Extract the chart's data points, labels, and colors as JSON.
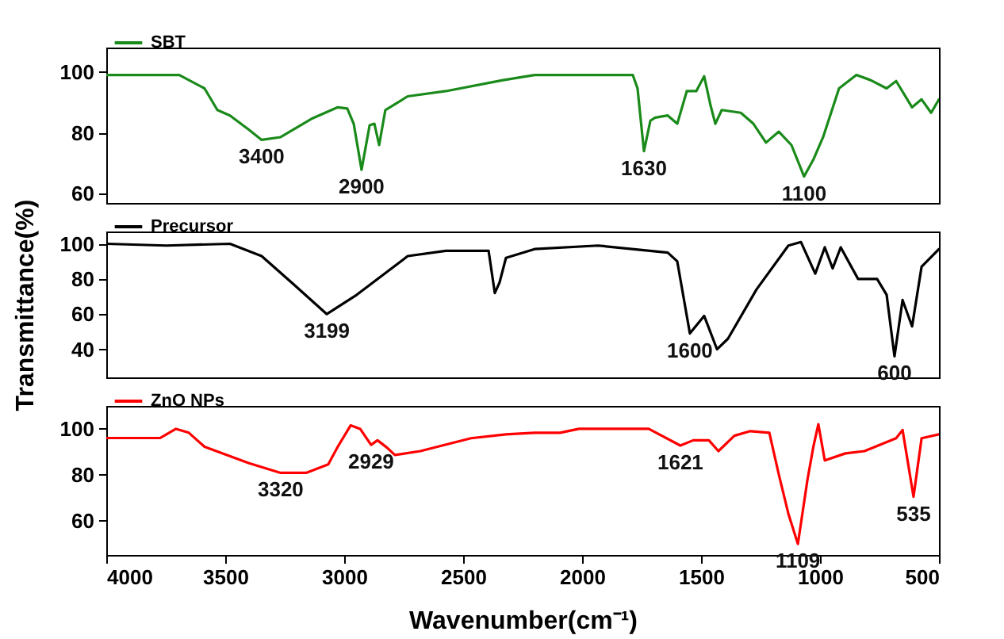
{
  "chart_data": [
    {
      "type": "line",
      "legend": "top left",
      "grid": false,
      "tick_labels": "y",
      "xlim": [
        4000,
        500
      ],
      "ylim": [
        57,
        108
      ],
      "yticks": [
        60,
        80,
        100
      ],
      "x": [
        4000,
        3693,
        3587,
        3533,
        3480,
        3400,
        3347,
        3267,
        3133,
        3027,
        2987,
        2960,
        2927,
        2893,
        2873,
        2853,
        2827,
        2733,
        2573,
        2333,
        2200,
        1933,
        1787,
        1767,
        1740,
        1713,
        1693,
        1640,
        1600,
        1560,
        1520,
        1487,
        1460,
        1440,
        1413,
        1333,
        1280,
        1227,
        1173,
        1120,
        1067,
        1027,
        987,
        920,
        847,
        787,
        720,
        680,
        613,
        573,
        533,
        500
      ],
      "series": [
        {
          "name": "SBT",
          "color": "#1a8a1a",
          "values": [
            99,
            99,
            94.6,
            87.5,
            85.7,
            81,
            77.7,
            78.6,
            84.8,
            88.4,
            88,
            83,
            67.9,
            82.5,
            83,
            76,
            87.5,
            92,
            93.7,
            97.3,
            99,
            99,
            99,
            94.6,
            74,
            84,
            85,
            85.7,
            83,
            93.7,
            93.7,
            98.6,
            89,
            83,
            87.5,
            86.6,
            83,
            76.8,
            80.4,
            76,
            65.7,
            71.4,
            78.6,
            94.6,
            99,
            97.3,
            94.6,
            97,
            88.4,
            91,
            86.6,
            91
          ]
        }
      ],
      "annotations": [
        {
          "text": "3400",
          "x": 3347,
          "y": 77.7
        },
        {
          "text": "2900",
          "x": 2927,
          "y": 67.9
        },
        {
          "text": "1630",
          "x": 1740,
          "y": 74
        },
        {
          "text": "1100",
          "x": 1067,
          "y": 65.7
        }
      ]
    },
    {
      "type": "line",
      "legend": "top left",
      "grid": false,
      "tick_labels": "y",
      "xlim": [
        4000,
        500
      ],
      "ylim": [
        24,
        107
      ],
      "yticks": [
        40,
        60,
        80,
        100
      ],
      "ylabel": "Transmittance(%)",
      "x": [
        4000,
        3747,
        3480,
        3347,
        3213,
        3073,
        2947,
        2733,
        2573,
        2393,
        2367,
        2347,
        2320,
        2200,
        1933,
        1640,
        1600,
        1547,
        1487,
        1433,
        1387,
        1267,
        1133,
        1080,
        1020,
        980,
        947,
        913,
        840,
        760,
        720,
        687,
        653,
        613,
        573,
        500
      ],
      "series": [
        {
          "name": "Precursor",
          "color": "#000000",
          "values": [
            100,
            99,
            100,
            93,
            77,
            60,
            71,
            93,
            96,
            96,
            72,
            78,
            92,
            97,
            99,
            95,
            90,
            49,
            59,
            40,
            46,
            74,
            99,
            101,
            83,
            98,
            86,
            98,
            80,
            80,
            71,
            36,
            68,
            53,
            87,
            97
          ]
        }
      ],
      "annotations": [
        {
          "text": "3199",
          "x": 3073,
          "y": 60
        },
        {
          "text": "1600",
          "x": 1547,
          "y": 49
        },
        {
          "text": "600",
          "x": 687,
          "y": 36
        }
      ]
    },
    {
      "type": "line",
      "legend": "top left",
      "grid": false,
      "xlim": [
        4000,
        500
      ],
      "xticks": [
        4000,
        3500,
        3000,
        2500,
        2000,
        1500,
        1000,
        500
      ],
      "ylim": [
        45,
        110
      ],
      "yticks": [
        60,
        80,
        100
      ],
      "xlabel": "Wavenumber(cm⁻¹)",
      "x": [
        4000,
        3773,
        3707,
        3653,
        3587,
        3400,
        3267,
        3160,
        3067,
        3027,
        2973,
        2933,
        2887,
        2860,
        2820,
        2787,
        2680,
        2467,
        2320,
        2200,
        2093,
        2013,
        1720,
        1587,
        1533,
        1467,
        1427,
        1360,
        1293,
        1213,
        1173,
        1133,
        1093,
        1053,
        1027,
        1007,
        980,
        893,
        813,
        680,
        653,
        607,
        573,
        500
      ],
      "series": [
        {
          "name": "ZnO NPs",
          "color": "#ff0000",
          "values": [
            96,
            96,
            100,
            98.3,
            92.2,
            85,
            80.8,
            80.8,
            84.5,
            92.2,
            101.5,
            100,
            93,
            95,
            91.8,
            88.6,
            90.3,
            95.9,
            97.6,
            98.3,
            98.3,
            100,
            100,
            92.7,
            95,
            95,
            90.3,
            97,
            99,
            98.3,
            80,
            63,
            49.8,
            77.7,
            92.7,
            102,
            86.2,
            89.3,
            90.3,
            95.9,
            99.5,
            70.4,
            95.9,
            97.6
          ]
        }
      ],
      "annotations": [
        {
          "text": "3320",
          "x": 3267,
          "y": 80.8
        },
        {
          "text": "2929",
          "x": 2887,
          "y": 93
        },
        {
          "text": "1621",
          "x": 1587,
          "y": 92.7
        },
        {
          "text": "1109",
          "x": 1093,
          "y": 49.8
        },
        {
          "text": "535",
          "x": 607,
          "y": 70.4
        }
      ]
    }
  ]
}
